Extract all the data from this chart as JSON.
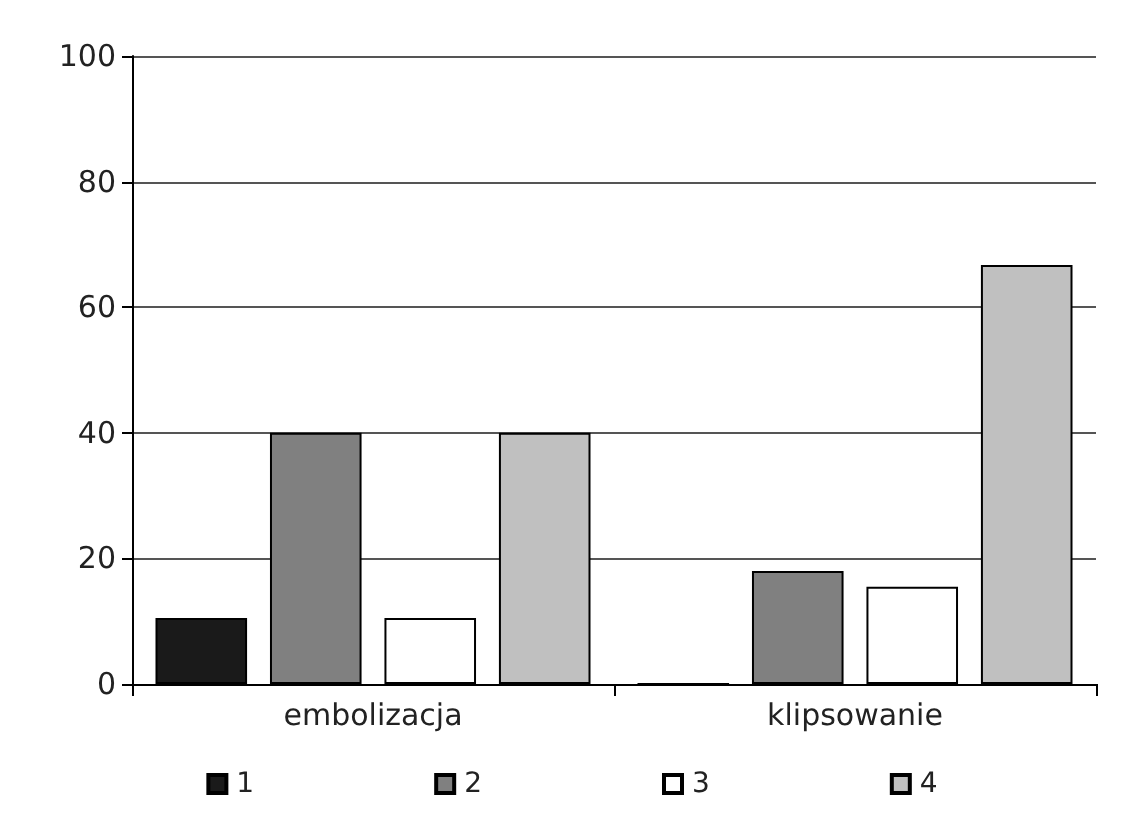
{
  "chart_data": {
    "type": "bar",
    "categories": [
      "embolizacja",
      "klipsowanie"
    ],
    "series": [
      {
        "name": "1",
        "color": "#1a1a1a",
        "values": [
          10.5,
          0
        ]
      },
      {
        "name": "2",
        "color": "#808080",
        "values": [
          40,
          18
        ]
      },
      {
        "name": "3",
        "color": "#ffffff",
        "values": [
          10.5,
          15.5
        ]
      },
      {
        "name": "4",
        "color": "#c0c0c0",
        "values": [
          40,
          66.7
        ]
      }
    ],
    "ylim": [
      0,
      100
    ],
    "yticks": [
      0,
      20,
      40,
      60,
      80,
      100
    ],
    "grid": "y",
    "legend": "bottom"
  }
}
